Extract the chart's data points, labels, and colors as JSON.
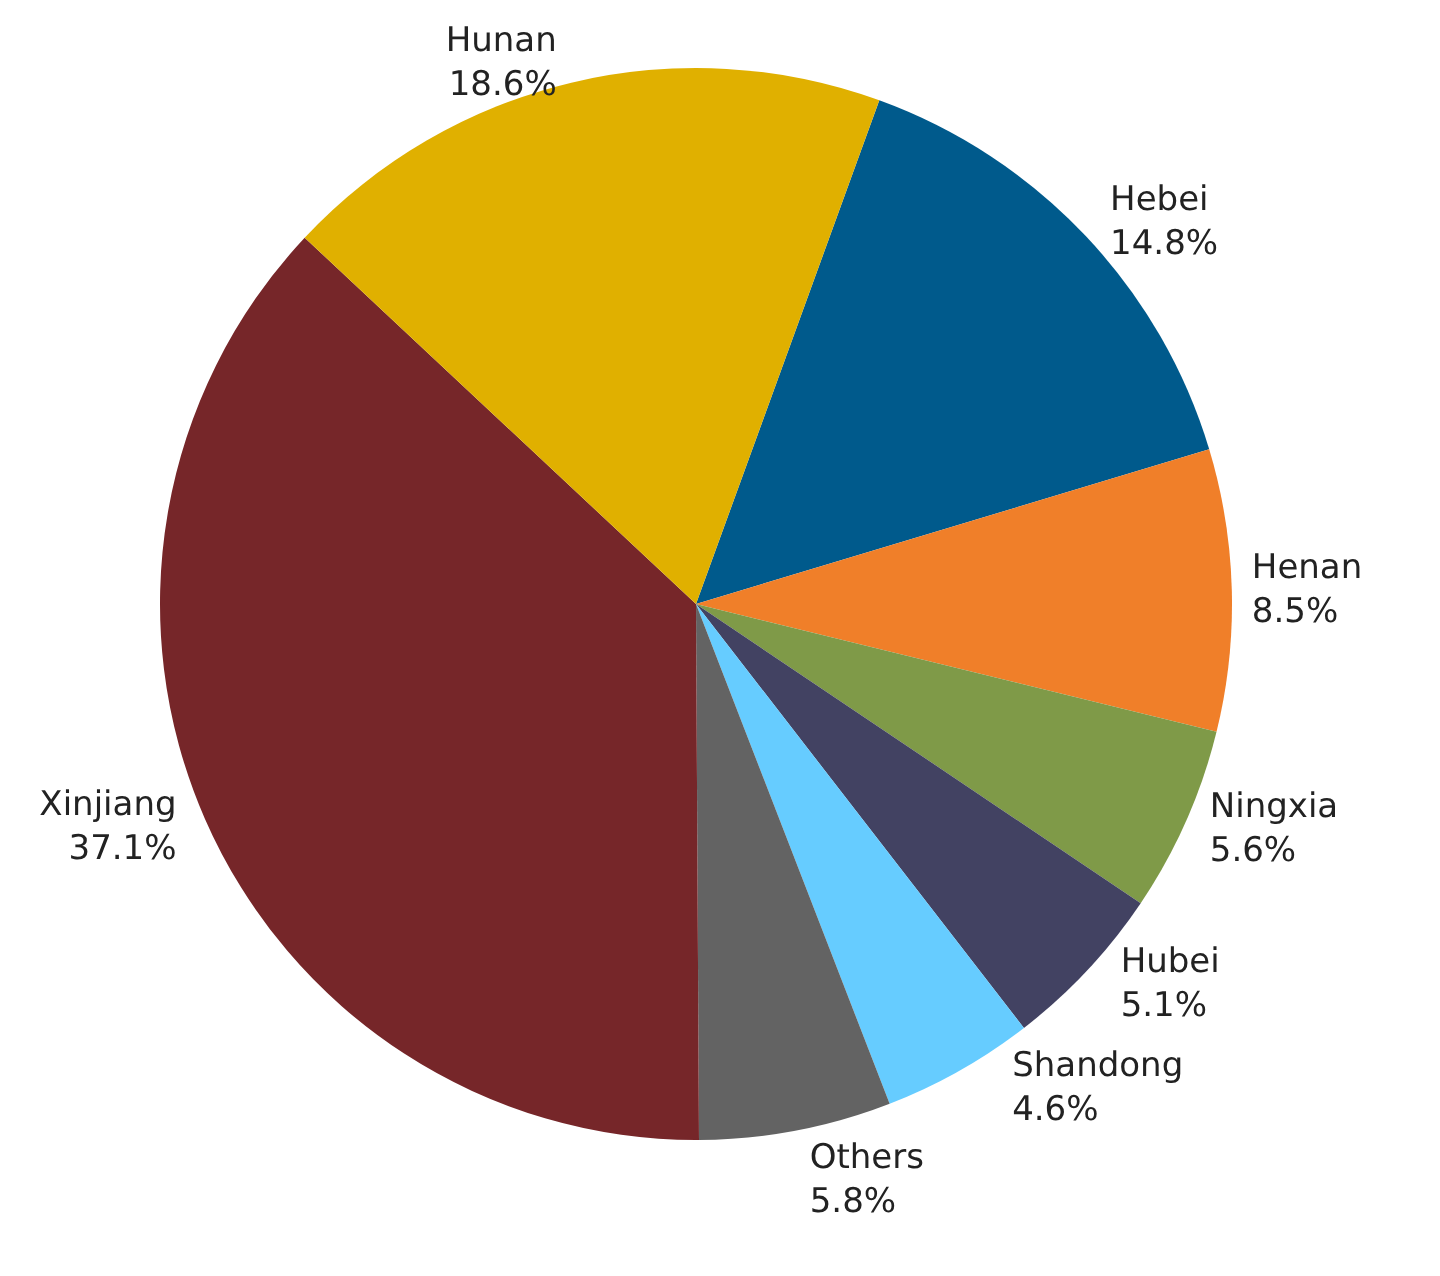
{
  "chart_data": {
    "type": "pie",
    "categories": [
      "Hebei",
      "Henan",
      "Ningxia",
      "Hubei",
      "Shandong",
      "Others",
      "Xinjiang",
      "Hunan"
    ],
    "values": [
      14.8,
      8.5,
      5.6,
      5.1,
      4.6,
      5.8,
      37.1,
      18.6
    ],
    "value_labels": [
      "14.8%",
      "8.5%",
      "5.6%",
      "5.1%",
      "4.6%",
      "5.8%",
      "37.1%",
      "18.6%"
    ],
    "colors": [
      "#005a8c",
      "#f07f29",
      "#7f9a48",
      "#424262",
      "#66ccff",
      "#636363",
      "#762629",
      "#e0b000"
    ]
  }
}
